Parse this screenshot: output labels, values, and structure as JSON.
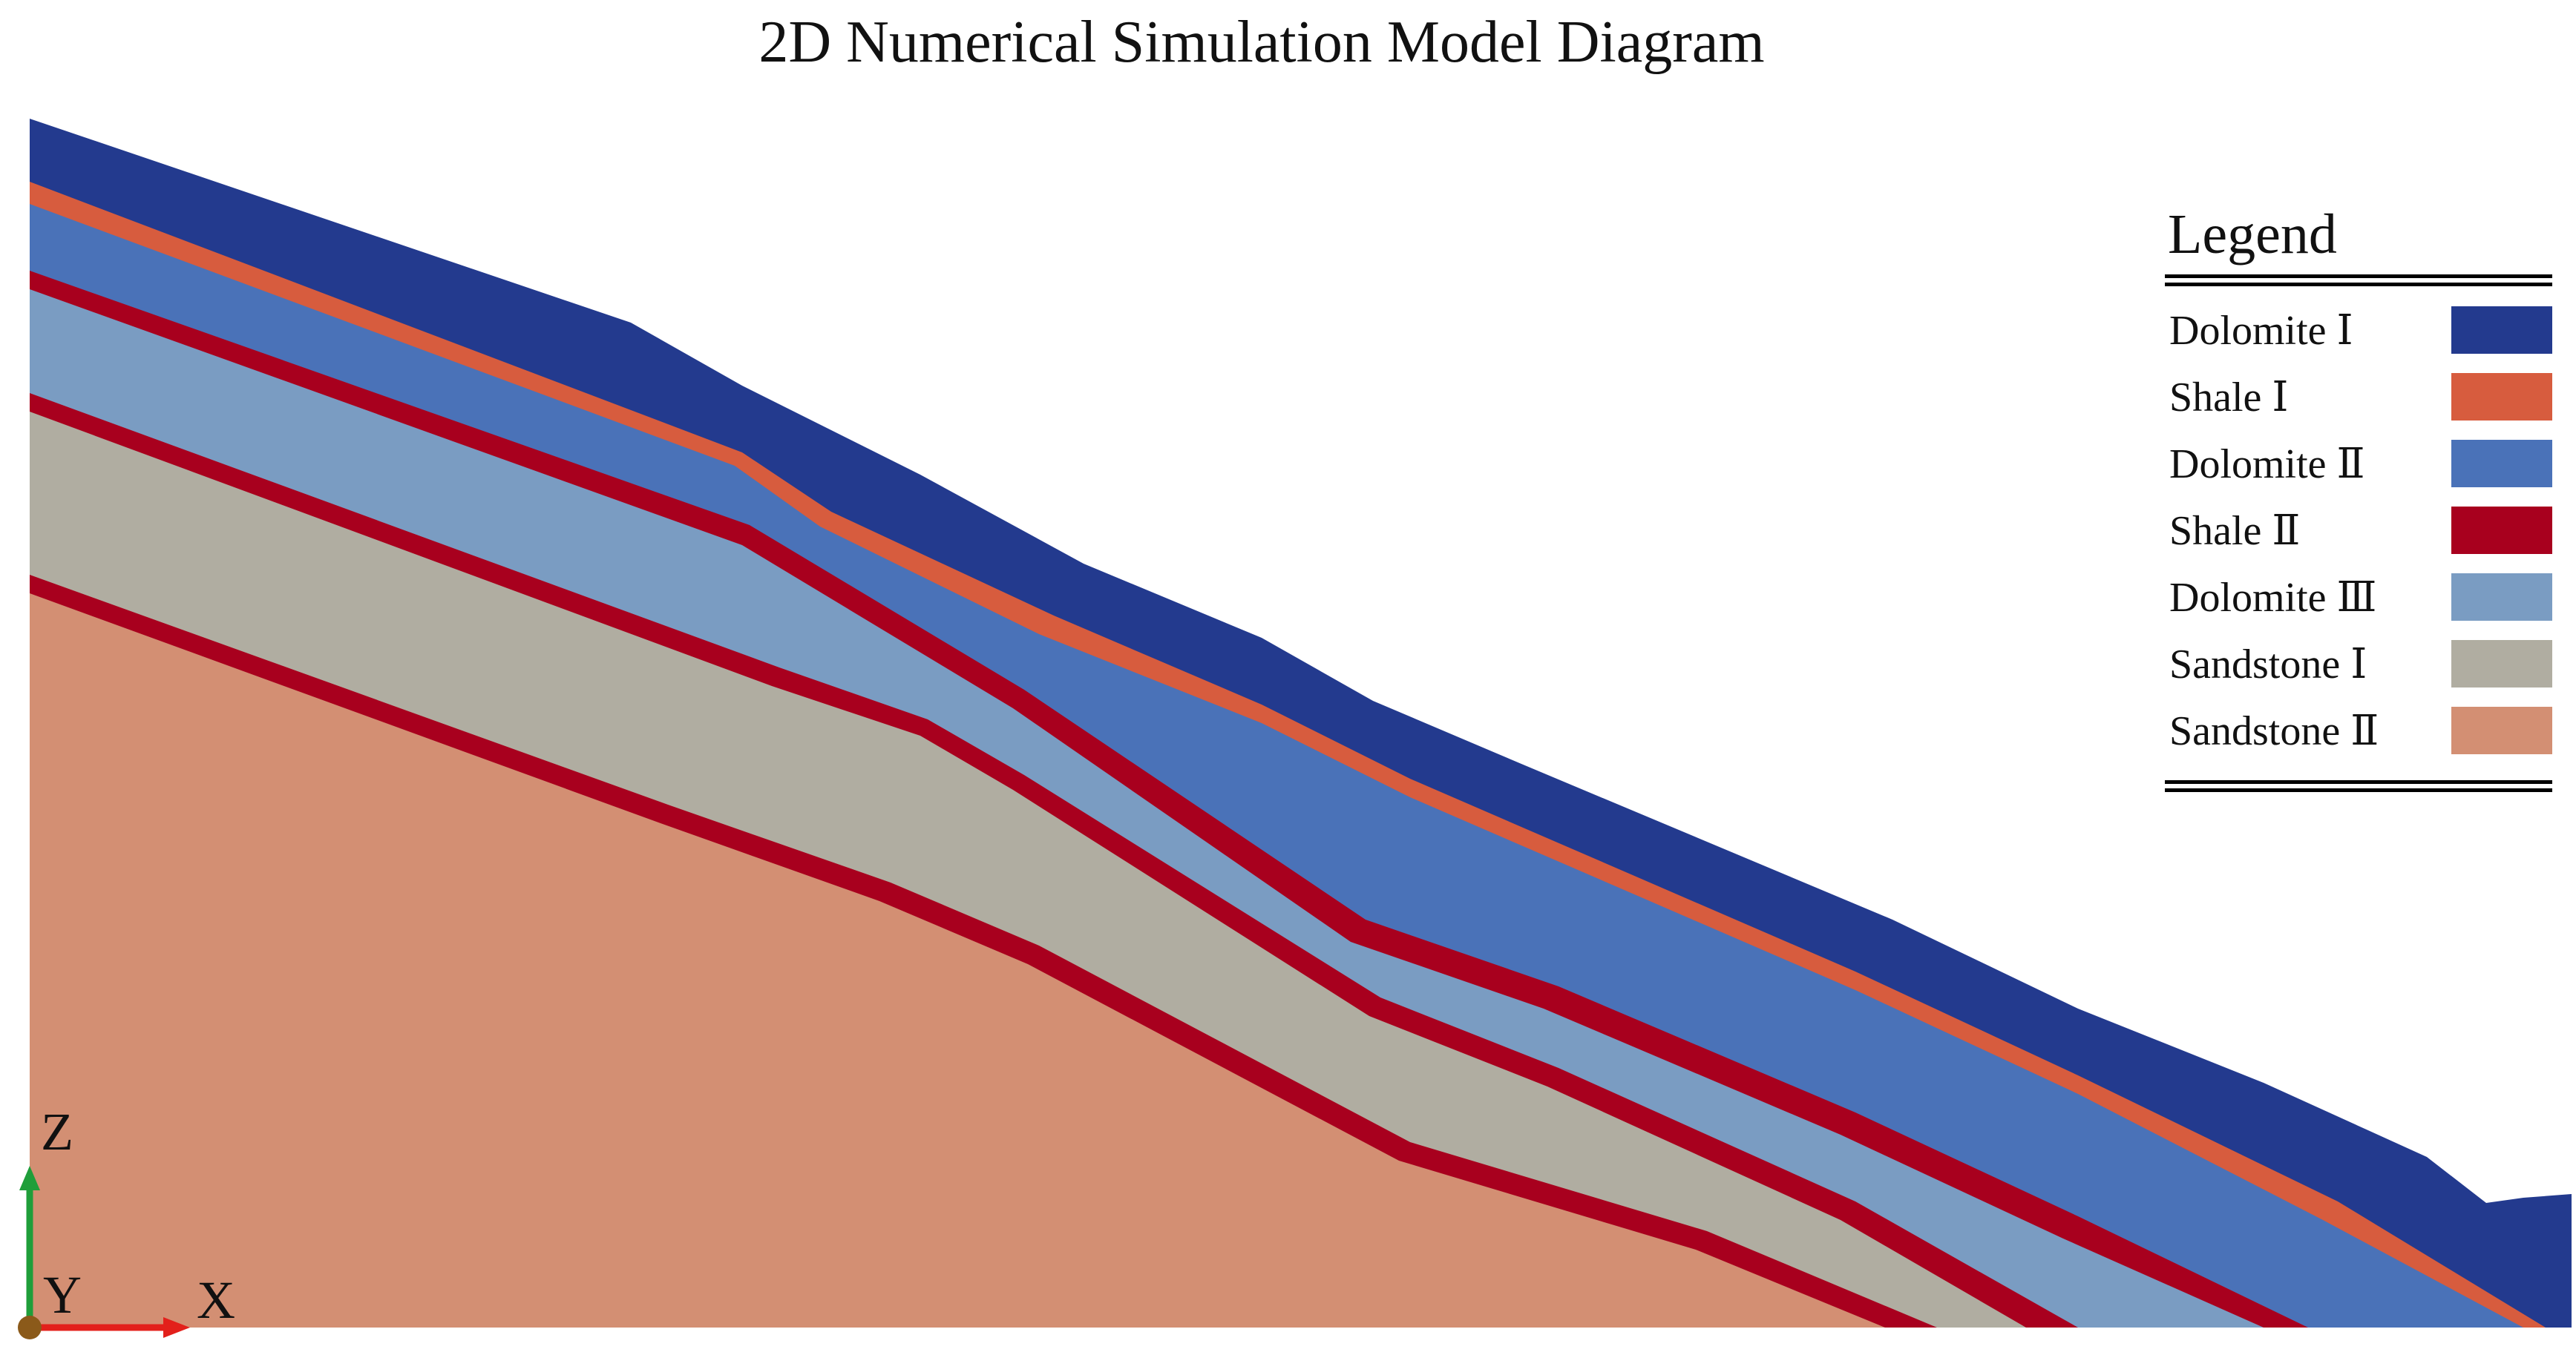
{
  "title": "2D Numerical Simulation Model Diagram",
  "legend": {
    "title": "Legend",
    "items": [
      {
        "label": "Dolomite Ⅰ",
        "color": "#233a8e"
      },
      {
        "label": "Shale Ⅰ",
        "color": "#d75c3e"
      },
      {
        "label": "Dolomite Ⅱ",
        "color": "#4a72b8"
      },
      {
        "label": "Shale Ⅱ",
        "color": "#a8001e"
      },
      {
        "label": "Dolomite Ⅲ",
        "color": "#7a9cc2"
      },
      {
        "label": "Sandstone Ⅰ",
        "color": "#b0ada1"
      },
      {
        "label": "Sandstone Ⅱ",
        "color": "#d38f73"
      }
    ]
  },
  "axes": {
    "z_label": "Z",
    "y_label": "Y",
    "x_label": "X",
    "z_color": "#1f9e3a",
    "x_color": "#e3201b",
    "origin_color": "#8b5a1a"
  }
}
